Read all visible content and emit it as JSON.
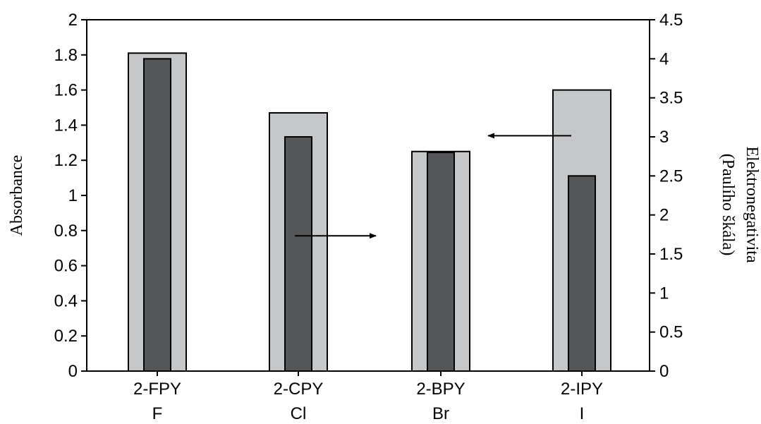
{
  "chart_data": {
    "type": "bar",
    "categories": [
      {
        "line1": "2-FPY",
        "line2": "F"
      },
      {
        "line1": "2-CPY",
        "line2": "Cl"
      },
      {
        "line1": "2-BPY",
        "line2": "Br"
      },
      {
        "line1": "2-IPY",
        "line2": "I"
      }
    ],
    "series": [
      {
        "axis": "left",
        "color": "#c6c7c9",
        "values": [
          1.81,
          1.47,
          1.25,
          1.6
        ]
      },
      {
        "axis": "right",
        "color": "#555658",
        "values": [
          4.0,
          3.0,
          2.8,
          2.5
        ]
      }
    ],
    "left_axis": {
      "label": "Absorbance",
      "ylim": [
        0,
        2
      ],
      "ticks": [
        "0",
        "0.2",
        "0.4",
        "0.6",
        "0.8",
        "1",
        "1.2",
        "1.4",
        "1.6",
        "1.8",
        "2"
      ]
    },
    "right_axis": {
      "label_line1": "Elektronegativita",
      "label_line2": "(Paulího škála)",
      "ylim": [
        0,
        4.5
      ],
      "ticks": [
        "0",
        "0.5",
        "1",
        "1.5",
        "2",
        "2.5",
        "3",
        "3.5",
        "4",
        "4.5"
      ]
    },
    "annotations": [
      {
        "type": "arrow",
        "direction": "right",
        "from_category": 1,
        "y": 0.77,
        "axis": "left"
      },
      {
        "type": "arrow",
        "direction": "left",
        "from_category": 3,
        "y": 1.34,
        "axis": "left"
      }
    ],
    "grid": false,
    "legend": "none"
  }
}
